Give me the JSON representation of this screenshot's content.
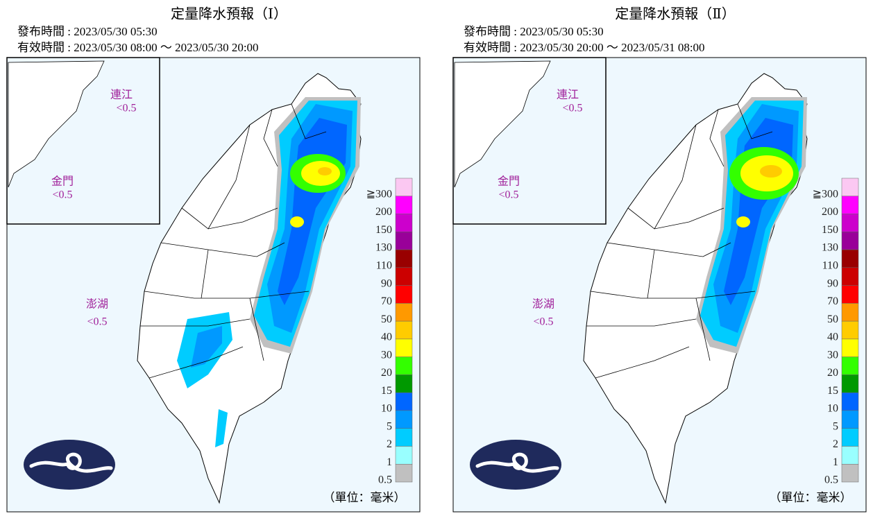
{
  "panels": [
    {
      "title": "定量降水預報（Ⅰ）",
      "issued": "發布時間 : 2023/05/30 05:30",
      "valid": "有效時間 : 2023/05/30 08:00 ～ 2023/05/30 20:00",
      "islands": [
        {
          "name": "連江",
          "value": "<0.5"
        },
        {
          "name": "金門",
          "value": "<0.5"
        },
        {
          "name": "澎湖",
          "value": "<0.5"
        }
      ],
      "unit": "（單位：毫米）"
    },
    {
      "title": "定量降水預報（Ⅱ）",
      "issued": "發布時間 : 2023/05/30 05:30",
      "valid": "有效時間 : 2023/05/30 20:00 ～ 2023/05/31 08:00",
      "islands": [
        {
          "name": "連江",
          "value": "<0.5"
        },
        {
          "name": "金門",
          "value": "<0.5"
        },
        {
          "name": "澎湖",
          "value": "<0.5"
        }
      ],
      "unit": "（單位：毫米）"
    }
  ],
  "legend": {
    "labels": [
      "≧300",
      "200",
      "150",
      "130",
      "110",
      "90",
      "70",
      "50",
      "40",
      "30",
      "20",
      "15",
      "10",
      "5",
      "2",
      "1",
      "0.5"
    ],
    "colors": [
      "#fbc8f2",
      "#ff00ff",
      "#cc00cc",
      "#990099",
      "#990000",
      "#cc0000",
      "#ff0000",
      "#ff9900",
      "#ffcc00",
      "#ffff00",
      "#33ff00",
      "#009900",
      "#0066ff",
      "#0099ff",
      "#00ccff",
      "#99ffff",
      "#c0c0c0"
    ]
  }
}
